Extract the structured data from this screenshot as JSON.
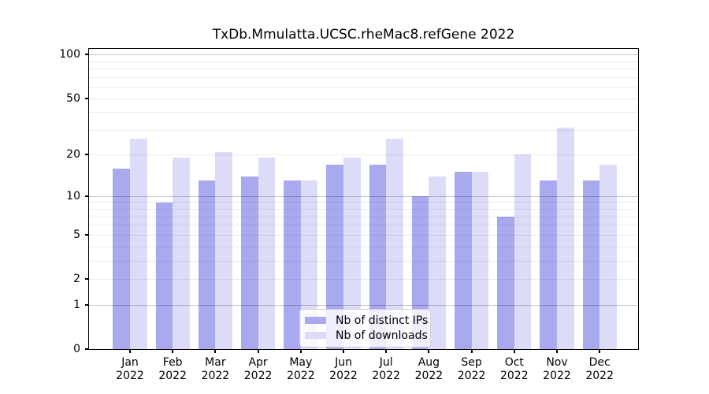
{
  "chart_data": {
    "type": "bar",
    "title": "TxDb.Mmulatta.UCSC.rheMac8.refGene 2022",
    "xlabel": "",
    "ylabel": "",
    "year": "2022",
    "categories": [
      "Jan",
      "Feb",
      "Mar",
      "Apr",
      "May",
      "Jun",
      "Jul",
      "Aug",
      "Sep",
      "Oct",
      "Nov",
      "Dec"
    ],
    "series": [
      {
        "name": "Nb of distinct IPs",
        "color": "#a9a9f0",
        "values": [
          16,
          9,
          13,
          14,
          13,
          17,
          17,
          10,
          15,
          7,
          13,
          13
        ]
      },
      {
        "name": "Nb of downloads",
        "color": "#dcdcf8",
        "values": [
          26,
          19,
          21,
          19,
          13,
          19,
          26,
          14,
          15,
          20,
          31,
          17
        ]
      }
    ],
    "yticks": [
      0,
      1,
      2,
      5,
      10,
      20,
      50,
      100
    ],
    "yscale": "log1p",
    "ylim": [
      0,
      112
    ],
    "grid": "horizontal, major at 1/10/100, minor at 2-9 and 20-90",
    "legend_position": "lower center"
  }
}
